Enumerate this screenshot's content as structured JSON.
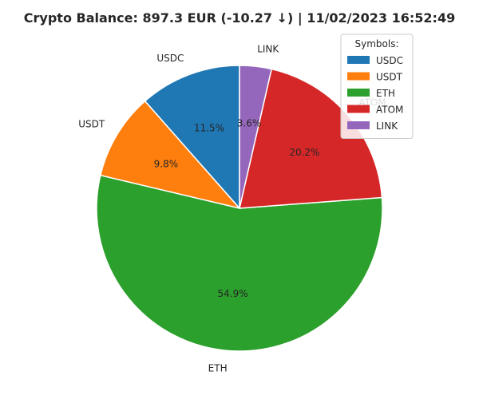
{
  "chart_data": {
    "type": "pie",
    "title": "Crypto Balance: 897.3 EUR (-10.27 ↓) | 11/02/2023 16:52:49",
    "categories": [
      "USDC",
      "USDT",
      "ETH",
      "ATOM",
      "LINK"
    ],
    "values": [
      11.5,
      9.8,
      54.9,
      20.2,
      3.6
    ],
    "percent_labels": [
      "11.5%",
      "9.8%",
      "54.9%",
      "20.2%",
      "3.6%"
    ],
    "colors": [
      "#1f77b4",
      "#ff7f0e",
      "#2ca02c",
      "#d62728",
      "#9467bd"
    ],
    "legend": {
      "title": "Symbols:",
      "placement": "top-right",
      "entries": [
        "USDC",
        "USDT",
        "ETH",
        "ATOM",
        "LINK"
      ]
    },
    "start_angle_deg": 90,
    "direction": "counterclockwise",
    "wedge_edge_color": "#ffffff"
  }
}
